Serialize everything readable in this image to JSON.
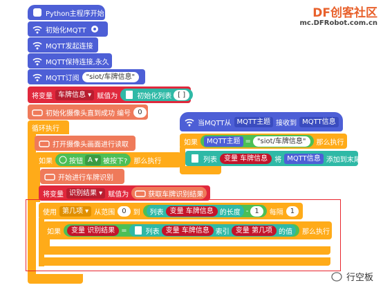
{
  "watermark": {
    "brand": "DF创客社区",
    "url": "mc.DFRobot.com.cn"
  },
  "footer": {
    "account": "行空板"
  },
  "main": {
    "start": "Python主程序开始",
    "init_mqtt": "初始化MQTT",
    "connect": "MQTT发起连接",
    "keep": "MQTT保持连接,永久",
    "subscribe": {
      "label": "MQTT订阅",
      "topic": "\"siot/车牌信息\""
    },
    "assign_list": {
      "set": "将变量",
      "var": "车牌信息 ▾",
      "to": "赋值为",
      "init": "初始化列表",
      "value": "[ ]"
    },
    "camera_init": {
      "label": "初始化摄像头直到成功 编号",
      "index": "0"
    },
    "loop": "循环执行",
    "camera_read": "打开摄像头画面进行读取",
    "if_button": {
      "if": "如果",
      "button": "按钮",
      "key": "A ▾",
      "pressed": "被按下?",
      "then": "那么执行"
    },
    "recognize": "开始进行车牌识别",
    "assign_result": {
      "set": "将变量",
      "var": "识别结果 ▾",
      "to": "赋值为",
      "get": "获取车牌识别结果"
    },
    "for_range": {
      "use": "使用",
      "var": "第几项 ▾",
      "from": "从范围",
      "start": "0",
      "to": "到",
      "list": "列表",
      "list_var": "变量 车牌信息",
      "length": "的长度",
      "minus": "-",
      "one": "1",
      "step_label": "每隔",
      "step": "1"
    },
    "if_match": {
      "if": "如果",
      "var": "变量 识别结果",
      "eq": "=",
      "list": "列表",
      "list_var": "变量 车牌信息",
      "index": "索引",
      "index_var": "变量 第几项",
      "value": "的值",
      "then": "那么执行"
    }
  },
  "handler": {
    "hat": {
      "when": "当MQTT从",
      "topic": "MQTT主题",
      "received": "接收到",
      "message": "MQTT信息"
    },
    "if": {
      "if": "如果",
      "topic": "MQTT主题",
      "eq": "=",
      "value": "\"siot/车牌信息\"",
      "then": "那么执行"
    },
    "append": {
      "list": "列表",
      "var": "变量 车牌信息",
      "add": "将",
      "message": "MQTT信息",
      "end": "添加到末尾"
    }
  }
}
